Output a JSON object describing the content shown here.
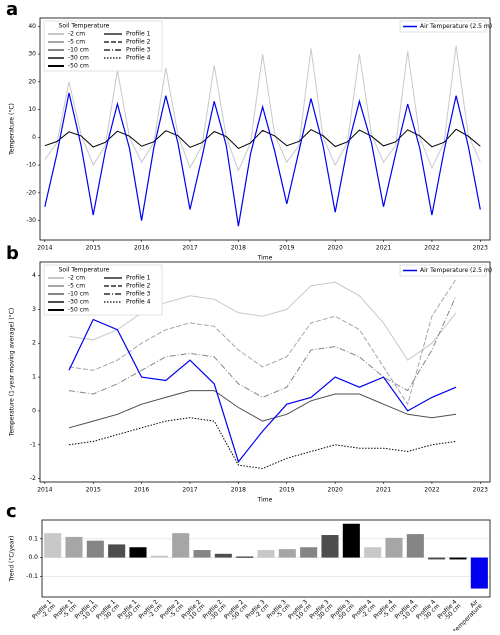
{
  "chart_data": [
    {
      "type": "line",
      "label": "a",
      "xlabel": "Time",
      "ylabel": "Temperature (°C)",
      "x": [
        2014.0,
        2014.25,
        2014.5,
        2014.75,
        2015.0,
        2015.25,
        2015.5,
        2015.75,
        2016.0,
        2016.25,
        2016.5,
        2016.75,
        2017.0,
        2017.25,
        2017.5,
        2017.75,
        2018.0,
        2018.25,
        2018.5,
        2018.75,
        2019.0,
        2019.25,
        2019.5,
        2019.75,
        2020.0,
        2020.25,
        2020.5,
        2020.75,
        2021.0,
        2021.25,
        2021.5,
        2021.75,
        2022.0,
        2022.25,
        2022.5,
        2022.75,
        2023.0
      ],
      "xlim": [
        2013.9,
        2023.2
      ],
      "xticks": [
        2014,
        2015,
        2016,
        2017,
        2018,
        2019,
        2020,
        2021,
        2022,
        2023
      ],
      "ylim": [
        -37,
        43
      ],
      "yticks": [
        -30,
        -20,
        -10,
        0,
        10,
        20,
        30,
        40
      ],
      "grid": false,
      "legend": {
        "title": "Soil Temperature",
        "depths": [
          {
            "label": "-2 cm",
            "color": "#c8c8c8"
          },
          {
            "label": "-5 cm",
            "color": "#a6a6a6"
          },
          {
            "label": "-10 cm",
            "color": "#858585"
          },
          {
            "label": "-30 cm",
            "color": "#4d4d4d"
          },
          {
            "label": "-50 cm",
            "color": "#000000"
          }
        ],
        "profiles": [
          {
            "label": "Profile 1",
            "dash": ""
          },
          {
            "label": "Profile 2",
            "dash": "5,2"
          },
          {
            "label": "Profile 3",
            "dash": "6,2,1,2"
          },
          {
            "label": "Profile 4",
            "dash": "1.5,1.5"
          }
        ]
      },
      "series": [
        {
          "depth": 0,
          "profile": 0,
          "values": [
            -8,
            -2,
            20,
            1,
            -10,
            -3,
            24,
            0,
            -9,
            -2,
            25,
            1,
            -11,
            -3,
            26,
            0,
            -12,
            -2,
            30,
            1,
            -9,
            -3,
            32,
            0,
            -10,
            -2,
            30,
            1,
            -9,
            -3,
            31,
            0,
            -11,
            -2,
            33,
            1,
            -9
          ]
        },
        {
          "depth": 4,
          "profile": 0,
          "values": [
            -3,
            -1.5,
            2,
            0.5,
            -3.5,
            -1.8,
            2.2,
            0.4,
            -3.2,
            -1.6,
            2.4,
            0.6,
            -3.6,
            -1.9,
            2.1,
            0.3,
            -4,
            -2,
            2.5,
            0.5,
            -3,
            -1.5,
            2.8,
            0.6,
            -3.3,
            -1.7,
            2.6,
            0.4,
            -3.1,
            -1.6,
            2.7,
            0.5,
            -3.4,
            -1.8,
            2.9,
            0.4,
            -3.2
          ]
        },
        {
          "name": "Air Temperature (2.5 m)",
          "color": "#0000ee",
          "values": [
            -25,
            -6,
            16,
            -3,
            -28,
            -5,
            12,
            -4,
            -30,
            -4,
            15,
            -2,
            -26,
            -7,
            13,
            -3,
            -32,
            -6,
            11,
            -5,
            -24,
            -5,
            14,
            -3,
            -27,
            -4,
            13,
            -2,
            -25,
            -6,
            12,
            -4,
            -28,
            -5,
            15,
            -3,
            -26
          ]
        }
      ]
    },
    {
      "type": "line",
      "label": "b",
      "xlabel": "Time",
      "ylabel": "Temperature (1-year moving average) (°C)",
      "x": [
        2014.5,
        2015.0,
        2015.5,
        2016.0,
        2016.5,
        2017.0,
        2017.5,
        2018.0,
        2018.5,
        2019.0,
        2019.5,
        2020.0,
        2020.5,
        2021.0,
        2021.5,
        2022.0,
        2022.5
      ],
      "xlim": [
        2013.9,
        2023.2
      ],
      "xticks": [
        2014,
        2015,
        2016,
        2017,
        2018,
        2019,
        2020,
        2021,
        2022,
        2023
      ],
      "ylim": [
        -2.1,
        4.4
      ],
      "yticks": [
        -2,
        -1,
        0,
        1,
        2,
        3,
        4
      ],
      "grid": false,
      "legend": {
        "title": "Soil Temperature",
        "depths": [
          {
            "label": "-2 cm",
            "color": "#c8c8c8"
          },
          {
            "label": "-5 cm",
            "color": "#a6a6a6"
          },
          {
            "label": "-10 cm",
            "color": "#858585"
          },
          {
            "label": "-30 cm",
            "color": "#4d4d4d"
          },
          {
            "label": "-50 cm",
            "color": "#000000"
          }
        ],
        "profiles": [
          {
            "label": "Profile 1",
            "dash": ""
          },
          {
            "label": "Profile 2",
            "dash": "5,2"
          },
          {
            "label": "Profile 3",
            "dash": "6,2,1,2"
          },
          {
            "label": "Profile 4",
            "dash": "1.5,1.5"
          }
        ]
      },
      "series": [
        {
          "depth": 0,
          "profile": 0,
          "values": [
            2.2,
            2.1,
            2.4,
            2.9,
            3.2,
            3.4,
            3.3,
            2.9,
            2.8,
            3.0,
            3.7,
            3.8,
            3.4,
            2.6,
            1.5,
            2.0,
            2.9
          ]
        },
        {
          "depth": 1,
          "profile": 1,
          "values": [
            1.3,
            1.2,
            1.5,
            2.0,
            2.4,
            2.6,
            2.5,
            1.8,
            1.3,
            1.6,
            2.6,
            2.8,
            2.4,
            1.3,
            0.2,
            2.8,
            3.9
          ]
        },
        {
          "depth": 2,
          "profile": 2,
          "values": [
            0.6,
            0.5,
            0.8,
            1.2,
            1.6,
            1.7,
            1.6,
            0.8,
            0.4,
            0.7,
            1.8,
            1.9,
            1.6,
            1.0,
            0.6,
            1.8,
            3.4
          ]
        },
        {
          "depth": 3,
          "profile": 0,
          "values": [
            -0.5,
            -0.3,
            -0.1,
            0.2,
            0.4,
            0.6,
            0.6,
            0.1,
            -0.3,
            -0.1,
            0.3,
            0.5,
            0.5,
            0.2,
            -0.1,
            -0.2,
            -0.1
          ]
        },
        {
          "depth": 4,
          "profile": 3,
          "values": [
            -1.0,
            -0.9,
            -0.7,
            -0.5,
            -0.3,
            -0.2,
            -0.3,
            -1.6,
            -1.7,
            -1.4,
            -1.2,
            -1.0,
            -1.1,
            -1.1,
            -1.2,
            -1.0,
            -0.9
          ]
        },
        {
          "name": "Air Temperature (2.5 m)",
          "color": "#0000ee",
          "values": [
            1.2,
            2.7,
            2.4,
            1.0,
            0.9,
            1.5,
            0.8,
            -1.5,
            -0.6,
            0.2,
            0.4,
            1.0,
            0.7,
            1.0,
            0.0,
            0.4,
            0.7
          ]
        }
      ]
    },
    {
      "type": "bar",
      "label": "c",
      "ylabel": "Trend (°C/year)",
      "categories": [
        [
          "Profile 1",
          "-2 cm"
        ],
        [
          "Profile 1",
          "-5 cm"
        ],
        [
          "Profile 1",
          "-10 cm"
        ],
        [
          "Profile 1",
          "-30 cm"
        ],
        [
          "Profile 1",
          "-50 cm"
        ],
        [
          "Profile 2",
          "-2 cm"
        ],
        [
          "Profile 2",
          "-5 cm"
        ],
        [
          "Profile 2",
          "-10 cm"
        ],
        [
          "Profile 2",
          "-30 cm"
        ],
        [
          "Profile 2",
          "-50 cm"
        ],
        [
          "Profile 3",
          "-2 cm"
        ],
        [
          "Profile 3",
          "-5 cm"
        ],
        [
          "Profile 3",
          "-10 cm"
        ],
        [
          "Profile 3",
          "-30 cm"
        ],
        [
          "Profile 3",
          "-50 cm"
        ],
        [
          "Profile 4",
          "-2 cm"
        ],
        [
          "Profile 4",
          "-5 cm"
        ],
        [
          "Profile 4",
          "-10 cm"
        ],
        [
          "Profile 4",
          "-30 cm"
        ],
        [
          "Profile 4",
          "-50 cm"
        ],
        [
          "Air",
          "temperature"
        ]
      ],
      "values": [
        0.13,
        0.11,
        0.09,
        0.07,
        0.055,
        0.01,
        0.13,
        0.04,
        0.02,
        0.005,
        0.04,
        0.045,
        0.055,
        0.12,
        0.18,
        0.055,
        0.105,
        0.125,
        -0.01,
        -0.01,
        -0.165
      ],
      "colors": [
        "#c8c8c8",
        "#a6a6a6",
        "#858585",
        "#4d4d4d",
        "#000000",
        "#c8c8c8",
        "#a6a6a6",
        "#858585",
        "#4d4d4d",
        "#000000",
        "#c8c8c8",
        "#a6a6a6",
        "#858585",
        "#4d4d4d",
        "#000000",
        "#c8c8c8",
        "#a6a6a6",
        "#858585",
        "#4d4d4d",
        "#000000",
        "#0000ee"
      ],
      "ylim": [
        -0.21,
        0.2
      ],
      "yticks": [
        -0.1,
        {
          "value": 0,
          "label": "0.0"
        },
        0.1
      ],
      "grid": true
    }
  ]
}
